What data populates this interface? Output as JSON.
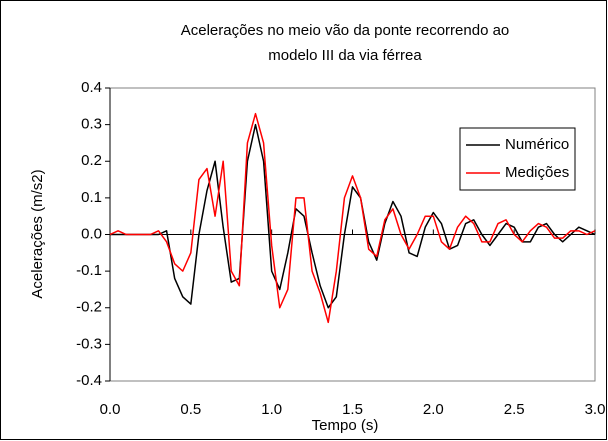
{
  "chart_data": {
    "type": "line",
    "title": [
      "Acelerações no meio vão da ponte recorrendo ao",
      "modelo III da via férrea"
    ],
    "xlabel": "Tempo (s)",
    "ylabel": "Acelerações (m/s2)",
    "x": [
      0,
      0.05,
      0.1,
      0.15,
      0.2,
      0.25,
      0.3,
      0.35,
      0.4,
      0.45,
      0.5,
      0.55,
      0.6,
      0.65,
      0.7,
      0.75,
      0.8,
      0.85,
      0.9,
      0.95,
      1,
      1.05,
      1.1,
      1.15,
      1.2,
      1.25,
      1.3,
      1.35,
      1.4,
      1.45,
      1.5,
      1.55,
      1.6,
      1.65,
      1.7,
      1.75,
      1.8,
      1.85,
      1.9,
      1.95,
      2,
      2.05,
      2.1,
      2.15,
      2.2,
      2.25,
      2.3,
      2.35,
      2.4,
      2.45,
      2.5,
      2.55,
      2.6,
      2.65,
      2.7,
      2.75,
      2.8,
      2.85,
      2.9,
      2.95,
      3
    ],
    "series": [
      {
        "name": "Numérico",
        "color": "#000000",
        "values": [
          0,
          0,
          0,
          0,
          0,
          0,
          0,
          0.01,
          -0.12,
          -0.17,
          -0.19,
          0,
          0.12,
          0.2,
          0.02,
          -0.13,
          -0.12,
          0.2,
          0.3,
          0.2,
          -0.1,
          -0.15,
          -0.05,
          0.07,
          0.05,
          -0.05,
          -0.14,
          -0.2,
          -0.17,
          0,
          0.13,
          0.1,
          -0.02,
          -0.07,
          0.03,
          0.09,
          0.05,
          -0.05,
          -0.06,
          0.02,
          0.06,
          0.03,
          -0.04,
          -0.03,
          0.03,
          0.04,
          0,
          -0.03,
          0,
          0.03,
          0.02,
          -0.02,
          -0.02,
          0.02,
          0.03,
          0,
          -0.02,
          0,
          0.02,
          0.01,
          0
        ]
      },
      {
        "name": "Medições",
        "color": "#ff0000",
        "values": [
          0,
          0.01,
          0,
          0,
          0,
          0,
          0.01,
          -0.02,
          -0.08,
          -0.1,
          -0.05,
          0.15,
          0.18,
          0.05,
          0.2,
          -0.1,
          -0.14,
          0.25,
          0.33,
          0.25,
          -0.03,
          -0.2,
          -0.15,
          0.1,
          0.1,
          -0.1,
          -0.16,
          -0.24,
          -0.1,
          0.1,
          0.16,
          0.1,
          -0.04,
          -0.06,
          0.04,
          0.07,
          0,
          -0.04,
          0,
          0.05,
          0.05,
          -0.02,
          -0.04,
          0.02,
          0.05,
          0.03,
          -0.02,
          -0.02,
          0.03,
          0.04,
          0,
          -0.02,
          0.01,
          0.03,
          0.02,
          -0.01,
          -0.01,
          0.01,
          0.01,
          0,
          0.01
        ]
      }
    ],
    "xlim": [
      0,
      3
    ],
    "xticks": [
      {
        "value": 0,
        "label": "0.0"
      },
      0.5,
      {
        "value": 1,
        "label": "1.0"
      },
      1.5,
      {
        "value": 2,
        "label": "2.0"
      },
      2.5,
      {
        "value": 3,
        "label": "3.0"
      }
    ],
    "ylim": [
      -0.4,
      0.4
    ],
    "yticks": [
      -0.4,
      -0.3,
      -0.2,
      -0.1,
      {
        "value": 0,
        "label": "0.0"
      },
      0.1,
      0.2,
      0.3,
      0.4
    ],
    "grid": false,
    "legend": "upper right"
  }
}
